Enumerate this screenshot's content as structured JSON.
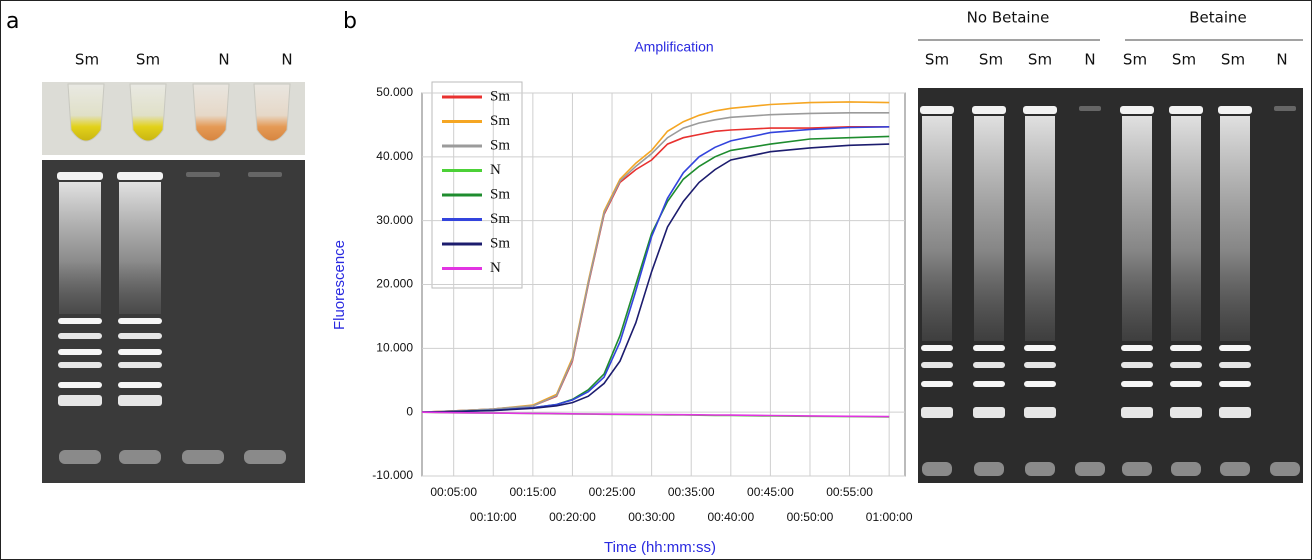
{
  "panel_a": {
    "label": "a",
    "lanes": [
      "Sm",
      "Sm",
      "N",
      "N"
    ]
  },
  "panel_b": {
    "label": "b"
  },
  "panel_c": {
    "groups": [
      "No Betaine",
      "Betaine"
    ],
    "lanes": [
      "Sm",
      "Sm",
      "Sm",
      "N",
      "Sm",
      "Sm",
      "Sm",
      "N"
    ]
  },
  "chart_data": {
    "type": "line",
    "title": "Amplification",
    "x_label": "Time (hh:mm:ss)",
    "y_label": "Fluorescence",
    "x": [
      1,
      5,
      10,
      15,
      18,
      20,
      22,
      24,
      26,
      28,
      30,
      32,
      34,
      36,
      38,
      40,
      45,
      50,
      55,
      60
    ],
    "xlim": [
      1,
      62
    ],
    "xticks": [
      {
        "value": 5,
        "label": "00:05:00"
      },
      {
        "value": 10,
        "label": "00:10:00"
      },
      {
        "value": 15,
        "label": "00:15:00"
      },
      {
        "value": 20,
        "label": "00:20:00"
      },
      {
        "value": 25,
        "label": "00:25:00"
      },
      {
        "value": 30,
        "label": "00:30:00"
      },
      {
        "value": 35,
        "label": "00:35:00"
      },
      {
        "value": 40,
        "label": "00:40:00"
      },
      {
        "value": 45,
        "label": "00:45:00"
      },
      {
        "value": 50,
        "label": "00:50:00"
      },
      {
        "value": 55,
        "label": "00:55:00"
      },
      {
        "value": 60,
        "label": "01:00:00"
      }
    ],
    "ylim": [
      -10000,
      50000
    ],
    "yticks": [
      {
        "value": -10000,
        "label": "-10.000"
      },
      0,
      {
        "value": 10000,
        "label": "10.000"
      },
      {
        "value": 20000,
        "label": "20.000"
      },
      {
        "value": 30000,
        "label": "30.000"
      },
      {
        "value": 40000,
        "label": "40.000"
      },
      {
        "value": 50000,
        "label": "50.000"
      }
    ],
    "grid": true,
    "legend": "top-left",
    "series": [
      {
        "name": "Sm",
        "color": "#e8312f",
        "values": [
          0,
          200,
          500,
          1000,
          2500,
          8000,
          20000,
          31000,
          36000,
          38000,
          39500,
          42000,
          43000,
          43500,
          44000,
          44200,
          44500,
          44500,
          44700,
          44700
        ]
      },
      {
        "name": "Sm",
        "color": "#f5a623",
        "values": [
          0,
          200,
          500,
          1100,
          2800,
          8500,
          20500,
          31500,
          36500,
          39000,
          41000,
          44000,
          45500,
          46500,
          47200,
          47600,
          48200,
          48500,
          48600,
          48500
        ]
      },
      {
        "name": "Sm",
        "color": "#9b9b9b",
        "values": [
          0,
          200,
          500,
          1000,
          2600,
          8200,
          20200,
          31200,
          36200,
          38500,
          40500,
          43000,
          44500,
          45300,
          45800,
          46200,
          46600,
          46800,
          46900,
          46900
        ]
      },
      {
        "name": "N",
        "color": "#4cd137",
        "values": [
          0,
          -100,
          -150,
          -200,
          -250,
          -280,
          -300,
          -330,
          -350,
          -380,
          -400,
          -430,
          -450,
          -480,
          -500,
          -520,
          -600,
          -650,
          -700,
          -750
        ]
      },
      {
        "name": "Sm",
        "color": "#1e8c2e",
        "values": [
          0,
          100,
          300,
          700,
          1200,
          2000,
          3500,
          6000,
          12000,
          20000,
          28000,
          33000,
          36500,
          38500,
          40000,
          41000,
          42000,
          42800,
          43000,
          43200
        ]
      },
      {
        "name": "Sm",
        "color": "#3344dd",
        "values": [
          0,
          100,
          300,
          700,
          1200,
          1900,
          3200,
          5500,
          11000,
          19000,
          27500,
          33500,
          37500,
          40000,
          41500,
          42500,
          43800,
          44300,
          44600,
          44700
        ]
      },
      {
        "name": "Sm",
        "color": "#1c1c6e",
        "values": [
          0,
          100,
          250,
          600,
          1000,
          1500,
          2500,
          4500,
          8000,
          14000,
          22000,
          29000,
          33000,
          36000,
          38000,
          39500,
          40800,
          41400,
          41800,
          42000
        ]
      },
      {
        "name": "N",
        "color": "#e234e2",
        "values": [
          0,
          -80,
          -150,
          -200,
          -230,
          -260,
          -280,
          -300,
          -320,
          -340,
          -360,
          -380,
          -400,
          -420,
          -440,
          -460,
          -520,
          -580,
          -640,
          -700
        ]
      }
    ]
  }
}
